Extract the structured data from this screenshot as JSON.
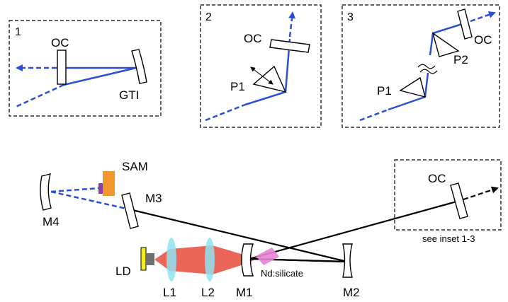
{
  "colors": {
    "beam": "#2a4fd6",
    "pump": "#e84a3c",
    "lens": "#8fe3f2",
    "crystal": "#e982d8",
    "sam": "#f0962c",
    "sam_backing": "#8b3fa3",
    "ld": "#f5ec1c",
    "ld_body": "#6f6f6f",
    "outline": "#000000"
  },
  "insets": [
    {
      "number": "1",
      "labels": [
        "OC",
        "GTI"
      ]
    },
    {
      "number": "2",
      "labels": [
        "OC",
        "P1"
      ]
    },
    {
      "number": "3",
      "labels": [
        "P1",
        "P2",
        "OC"
      ]
    }
  ],
  "main": {
    "labels": {
      "sam": "SAM",
      "m3": "M3",
      "m4": "M4",
      "ld": "LD",
      "l1": "L1",
      "l2": "L2",
      "m1": "M1",
      "m2": "M2",
      "crystal": "Nd:silicate",
      "oc": "OC",
      "see_inset": "see inset 1-3"
    }
  }
}
